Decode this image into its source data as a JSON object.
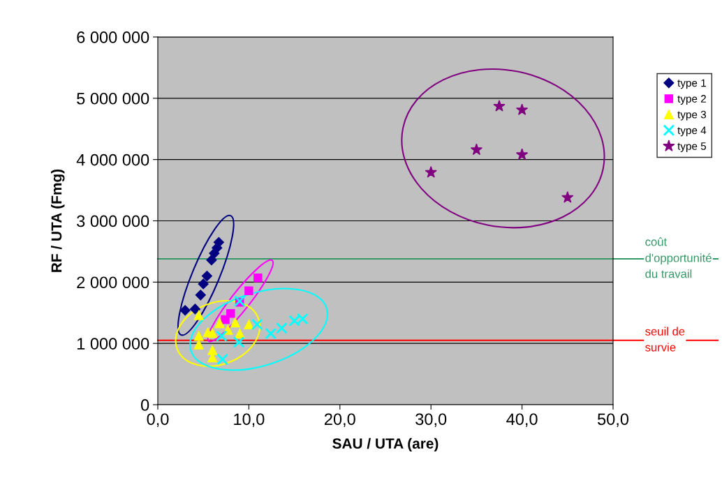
{
  "chart_data": {
    "type": "scatter",
    "xlabel": "SAU / UTA (are)",
    "ylabel": "RF / UTA (Fmg)",
    "xlim": [
      0,
      50
    ],
    "xticks": [
      {
        "value": 0,
        "label": "0,0"
      },
      {
        "value": 10,
        "label": "10,0"
      },
      {
        "value": 20,
        "label": "20,0"
      },
      {
        "value": 30,
        "label": "30,0"
      },
      {
        "value": 40,
        "label": "40,0"
      },
      {
        "value": 50,
        "label": "50,0"
      }
    ],
    "ylim": [
      0,
      6000000
    ],
    "yticks": [
      {
        "value": 0,
        "label": "0"
      },
      {
        "value": 1000000,
        "label": "1 000 000"
      },
      {
        "value": 2000000,
        "label": "2 000 000"
      },
      {
        "value": 3000000,
        "label": "3 000 000"
      },
      {
        "value": 4000000,
        "label": "4 000 000"
      },
      {
        "value": 5000000,
        "label": "5 000 000"
      },
      {
        "value": 6000000,
        "label": "6 000 000"
      }
    ],
    "grid": "y",
    "legend": "right",
    "series": [
      {
        "name": "type 1",
        "color": "#000080",
        "marker": "diamond",
        "x": [
          3.0,
          4.1,
          4.7,
          5.0,
          5.4,
          5.9,
          6.2,
          6.5,
          6.7
        ],
        "values": [
          1540000,
          1560000,
          1790000,
          1970000,
          2100000,
          2360000,
          2470000,
          2560000,
          2650000
        ]
      },
      {
        "name": "type 2",
        "color": "#ff00ff",
        "marker": "square",
        "x": [
          11.0,
          10.0,
          9.0,
          8.0,
          7.4
        ],
        "values": [
          2070000,
          1860000,
          1670000,
          1490000,
          1390000
        ]
      },
      {
        "name": "type 3",
        "color": "#ffff00",
        "marker": "triangle",
        "x": [
          4.5,
          4.5,
          4.5,
          5.5,
          6.0,
          6.0,
          6.0,
          6.8,
          7.7,
          8.5,
          9.0,
          10.0
        ],
        "values": [
          1460000,
          1120000,
          980000,
          1180000,
          1170000,
          890000,
          770000,
          1330000,
          1220000,
          1340000,
          1160000,
          1310000
        ]
      },
      {
        "name": "type 4",
        "color": "#00ffff",
        "marker": "cross",
        "x": [
          9.0,
          7.0,
          8.9,
          7.1,
          10.9,
          12.4,
          13.6,
          15.0,
          15.9
        ],
        "values": [
          1690000,
          1120000,
          1020000,
          740000,
          1310000,
          1160000,
          1250000,
          1370000,
          1400000
        ]
      },
      {
        "name": "type 5",
        "color": "#800080",
        "marker": "star",
        "x": [
          30.0,
          35.0,
          37.5,
          40.0,
          40.0,
          45.0
        ],
        "values": [
          3790000,
          4160000,
          4870000,
          4810000,
          4080000,
          3380000
        ]
      }
    ],
    "ref_lines": [
      {
        "axis": "y",
        "value": 2380000,
        "label": "coût\nd'opportunité\ndu travail",
        "color": "#339966"
      },
      {
        "axis": "y",
        "value": 1050000,
        "label": "seuil de\nsurvie",
        "color": "#ff0000"
      }
    ]
  }
}
